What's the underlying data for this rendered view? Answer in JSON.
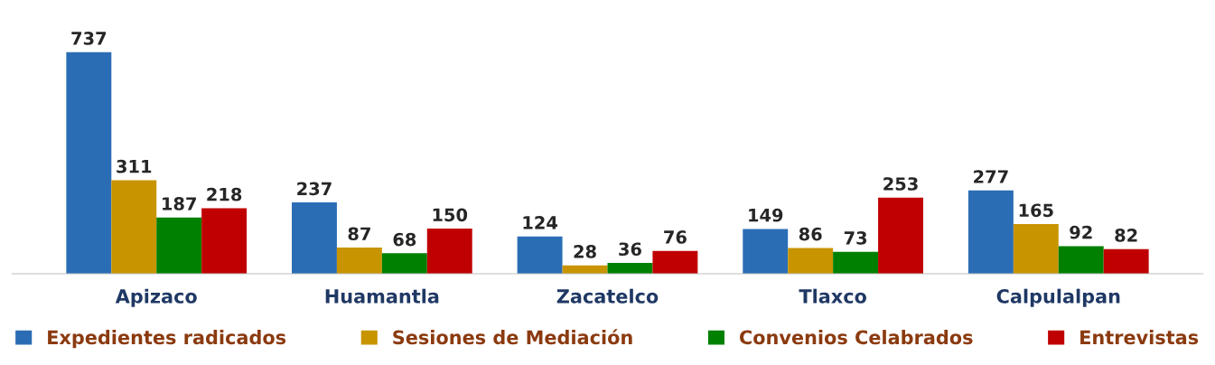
{
  "chart_data": {
    "type": "bar",
    "categories": [
      "Apizaco",
      "Huamantla",
      "Zacatelco",
      "Tlaxco",
      "Calpulalpan"
    ],
    "series": [
      {
        "name": "Expedientes radicados",
        "color": "#2a6db5",
        "values": [
          737,
          237,
          124,
          149,
          277
        ]
      },
      {
        "name": "Sesiones de Mediación",
        "color": "#c89400",
        "values": [
          311,
          87,
          28,
          86,
          165
        ]
      },
      {
        "name": "Convenios Celabrados",
        "color": "#008000",
        "values": [
          187,
          68,
          36,
          73,
          92
        ]
      },
      {
        "name": "Entrevistas",
        "color": "#c00000",
        "values": [
          218,
          150,
          76,
          253,
          82
        ]
      }
    ],
    "data_labels": true,
    "grid": false,
    "legend": "bottom"
  }
}
